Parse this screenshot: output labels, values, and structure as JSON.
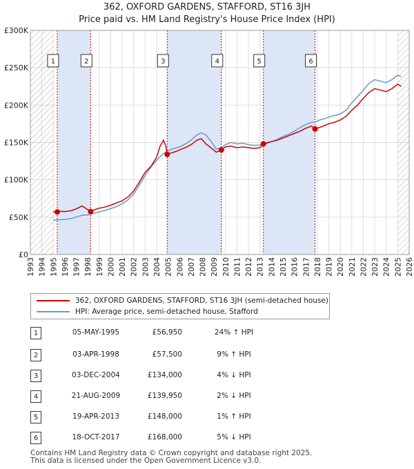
{
  "title_line1": "362, OXFORD GARDENS, STAFFORD, ST16 3JH",
  "title_line2": "Price paid vs. HM Land Registry's House Price Index (HPI)",
  "colors": {
    "price_line": "#cc0000",
    "hpi_line": "#6699cc",
    "shade": "#dde6f7",
    "grid": "#dddddd",
    "vline": "#cc0000",
    "hatch": "#aaaaaa"
  },
  "legend": {
    "price_label": "362, OXFORD GARDENS, STAFFORD, ST16 3JH (semi-detached house)",
    "hpi_label": "HPI: Average price, semi-detached house, Stafford"
  },
  "transactions": [
    {
      "num": "1",
      "date": "05-MAY-1995",
      "price": "£56,950",
      "hpi": "24% ↑ HPI"
    },
    {
      "num": "2",
      "date": "03-APR-1998",
      "price": "£57,500",
      "hpi": "9% ↑ HPI"
    },
    {
      "num": "3",
      "date": "03-DEC-2004",
      "price": "£134,000",
      "hpi": "4% ↓ HPI"
    },
    {
      "num": "4",
      "date": "21-AUG-2009",
      "price": "£139,950",
      "hpi": "2% ↓ HPI"
    },
    {
      "num": "5",
      "date": "19-APR-2013",
      "price": "£148,000",
      "hpi": "1% ↑ HPI"
    },
    {
      "num": "6",
      "date": "18-OCT-2017",
      "price": "£168,000",
      "hpi": "5% ↓ HPI"
    }
  ],
  "footer_line1": "Contains HM Land Registry data © Crown copyright and database right 2025.",
  "footer_line2": "This data is licensed under the Open Government Licence v3.0.",
  "chart_data": {
    "type": "line",
    "title": "362, OXFORD GARDENS, STAFFORD, ST16 3JH — Price paid vs. HM Land Registry's House Price Index (HPI)",
    "xlabel": "",
    "ylabel": "",
    "xlim": [
      1993,
      2026
    ],
    "ylim": [
      0,
      300000
    ],
    "y_ticks": [
      0,
      50000,
      100000,
      150000,
      200000,
      250000,
      300000
    ],
    "y_tick_labels": [
      "£0",
      "£50K",
      "£100K",
      "£150K",
      "£200K",
      "£250K",
      "£300K"
    ],
    "x_ticks": [
      1993,
      1994,
      1995,
      1996,
      1997,
      1998,
      1999,
      2000,
      2001,
      2002,
      2003,
      2004,
      2005,
      2006,
      2007,
      2008,
      2009,
      2010,
      2011,
      2012,
      2013,
      2014,
      2015,
      2016,
      2017,
      2018,
      2019,
      2020,
      2021,
      2022,
      2023,
      2024,
      2025,
      2026
    ],
    "hatched_ranges": [
      [
        1993,
        1995.0
      ],
      [
        2025.0,
        2026
      ]
    ],
    "shaded_ranges": [
      [
        1995.34,
        1998.25
      ],
      [
        2004.92,
        2009.64
      ],
      [
        2013.3,
        2017.8
      ]
    ],
    "sales": [
      {
        "label": "1",
        "x": 1995.34,
        "y": 56950
      },
      {
        "label": "2",
        "x": 1998.25,
        "y": 57500
      },
      {
        "label": "3",
        "x": 2004.92,
        "y": 134000
      },
      {
        "label": "4",
        "x": 2009.64,
        "y": 139950
      },
      {
        "label": "5",
        "x": 2013.3,
        "y": 148000
      },
      {
        "label": "6",
        "x": 2017.8,
        "y": 168000
      }
    ],
    "series": [
      {
        "name": "362, OXFORD GARDENS, STAFFORD, ST16 3JH (semi-detached house)",
        "points": [
          [
            1995.0,
            57000
          ],
          [
            1995.34,
            56950
          ],
          [
            1995.6,
            58000
          ],
          [
            1996.0,
            57500
          ],
          [
            1996.5,
            58500
          ],
          [
            1997.0,
            61000
          ],
          [
            1997.5,
            65000
          ],
          [
            1997.9,
            61000
          ],
          [
            1998.25,
            57500
          ],
          [
            1998.6,
            60000
          ],
          [
            1999.0,
            62000
          ],
          [
            1999.5,
            63500
          ],
          [
            2000.0,
            66000
          ],
          [
            2000.5,
            69000
          ],
          [
            2001.0,
            72000
          ],
          [
            2001.5,
            77000
          ],
          [
            2002.0,
            85000
          ],
          [
            2002.5,
            97000
          ],
          [
            2003.0,
            110000
          ],
          [
            2003.5,
            118000
          ],
          [
            2004.0,
            130000
          ],
          [
            2004.3,
            145000
          ],
          [
            2004.6,
            153000
          ],
          [
            2004.8,
            145000
          ],
          [
            2004.92,
            134000
          ],
          [
            2005.3,
            136000
          ],
          [
            2005.7,
            138000
          ],
          [
            2006.0,
            140000
          ],
          [
            2006.5,
            143000
          ],
          [
            2007.0,
            147000
          ],
          [
            2007.5,
            153000
          ],
          [
            2007.9,
            155000
          ],
          [
            2008.3,
            148000
          ],
          [
            2008.8,
            142000
          ],
          [
            2009.2,
            137000
          ],
          [
            2009.64,
            139950
          ],
          [
            2010.0,
            144000
          ],
          [
            2010.5,
            145000
          ],
          [
            2011.0,
            143000
          ],
          [
            2011.5,
            144000
          ],
          [
            2012.0,
            143000
          ],
          [
            2012.5,
            142000
          ],
          [
            2013.0,
            143000
          ],
          [
            2013.3,
            148000
          ],
          [
            2013.7,
            150000
          ],
          [
            2014.0,
            151000
          ],
          [
            2014.5,
            153000
          ],
          [
            2015.0,
            156000
          ],
          [
            2015.5,
            159000
          ],
          [
            2016.0,
            162000
          ],
          [
            2016.5,
            165000
          ],
          [
            2017.0,
            169000
          ],
          [
            2017.5,
            172000
          ],
          [
            2017.8,
            168000
          ],
          [
            2018.2,
            170000
          ],
          [
            2018.7,
            173000
          ],
          [
            2019.0,
            175000
          ],
          [
            2019.5,
            177000
          ],
          [
            2020.0,
            180000
          ],
          [
            2020.5,
            185000
          ],
          [
            2021.0,
            193000
          ],
          [
            2021.5,
            200000
          ],
          [
            2022.0,
            209000
          ],
          [
            2022.5,
            217000
          ],
          [
            2023.0,
            222000
          ],
          [
            2023.5,
            220000
          ],
          [
            2024.0,
            218000
          ],
          [
            2024.5,
            222000
          ],
          [
            2025.0,
            228000
          ],
          [
            2025.3,
            225000
          ]
        ]
      },
      {
        "name": "HPI: Average price, semi-detached house, Stafford",
        "points": [
          [
            1995.0,
            46000
          ],
          [
            1995.5,
            46500
          ],
          [
            1996.0,
            47000
          ],
          [
            1996.5,
            48000
          ],
          [
            1997.0,
            50000
          ],
          [
            1997.5,
            52500
          ],
          [
            1998.0,
            53000
          ],
          [
            1998.5,
            55000
          ],
          [
            1999.0,
            57000
          ],
          [
            1999.5,
            59000
          ],
          [
            2000.0,
            61500
          ],
          [
            2000.5,
            64000
          ],
          [
            2001.0,
            68000
          ],
          [
            2001.5,
            73000
          ],
          [
            2002.0,
            81000
          ],
          [
            2002.5,
            93000
          ],
          [
            2003.0,
            106000
          ],
          [
            2003.5,
            117000
          ],
          [
            2004.0,
            126000
          ],
          [
            2004.5,
            134000
          ],
          [
            2005.0,
            139000
          ],
          [
            2005.5,
            142000
          ],
          [
            2006.0,
            144000
          ],
          [
            2006.5,
            148000
          ],
          [
            2007.0,
            153000
          ],
          [
            2007.5,
            160000
          ],
          [
            2007.9,
            163000
          ],
          [
            2008.3,
            160000
          ],
          [
            2008.8,
            150000
          ],
          [
            2009.2,
            141000
          ],
          [
            2009.64,
            143000
          ],
          [
            2010.0,
            147000
          ],
          [
            2010.5,
            150000
          ],
          [
            2011.0,
            148000
          ],
          [
            2011.5,
            149000
          ],
          [
            2012.0,
            147000
          ],
          [
            2012.5,
            146000
          ],
          [
            2013.0,
            146500
          ],
          [
            2013.5,
            148000
          ],
          [
            2014.0,
            151000
          ],
          [
            2014.5,
            154000
          ],
          [
            2015.0,
            158000
          ],
          [
            2015.5,
            161000
          ],
          [
            2016.0,
            165000
          ],
          [
            2016.5,
            170000
          ],
          [
            2017.0,
            174000
          ],
          [
            2017.5,
            177000
          ],
          [
            2017.8,
            177000
          ],
          [
            2018.2,
            180000
          ],
          [
            2018.7,
            182000
          ],
          [
            2019.0,
            184000
          ],
          [
            2019.5,
            186000
          ],
          [
            2020.0,
            188000
          ],
          [
            2020.5,
            193000
          ],
          [
            2021.0,
            203000
          ],
          [
            2021.5,
            211000
          ],
          [
            2022.0,
            220000
          ],
          [
            2022.5,
            229000
          ],
          [
            2023.0,
            234000
          ],
          [
            2023.5,
            232000
          ],
          [
            2024.0,
            230000
          ],
          [
            2024.5,
            234000
          ],
          [
            2025.0,
            240000
          ],
          [
            2025.3,
            238000
          ]
        ]
      }
    ]
  }
}
